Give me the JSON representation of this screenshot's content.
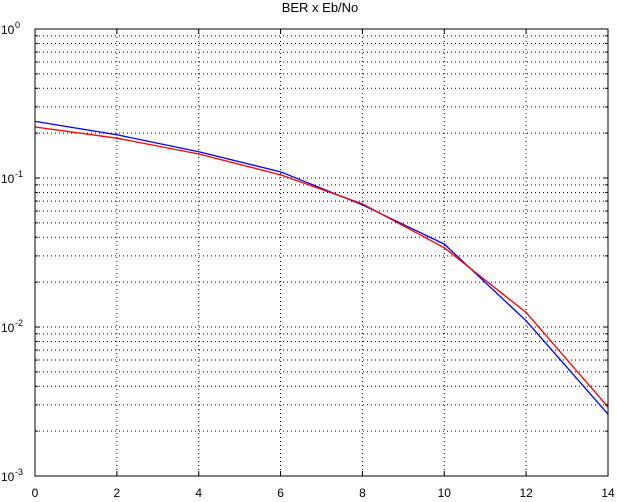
{
  "chart_data": {
    "type": "line",
    "title": "BER x Eb/No",
    "xlabel": "",
    "ylabel": "",
    "xlim": [
      0,
      14
    ],
    "ylim": [
      0.001,
      1
    ],
    "yscale": "log",
    "grid": true,
    "grid_style": "dotted",
    "legend": "none",
    "x_ticks": [
      "0",
      "2",
      "4",
      "6",
      "8",
      "10",
      "12",
      "14"
    ],
    "y_ticks": [
      {
        "base": "10",
        "exp": "0"
      },
      {
        "base": "10",
        "exp": "-1"
      },
      {
        "base": "10",
        "exp": "-2"
      },
      {
        "base": "10",
        "exp": "-3"
      }
    ],
    "series": [
      {
        "color": "#0000ff",
        "x": [
          0,
          2,
          4,
          6,
          8,
          10,
          12,
          14
        ],
        "y": [
          0.24,
          0.195,
          0.15,
          0.11,
          0.066,
          0.036,
          0.011,
          0.0026
        ]
      },
      {
        "color": "#ff0000",
        "x": [
          0,
          2,
          4,
          6,
          8,
          10,
          12,
          14
        ],
        "y": [
          0.22,
          0.185,
          0.145,
          0.105,
          0.067,
          0.034,
          0.0125,
          0.0029
        ]
      }
    ]
  }
}
